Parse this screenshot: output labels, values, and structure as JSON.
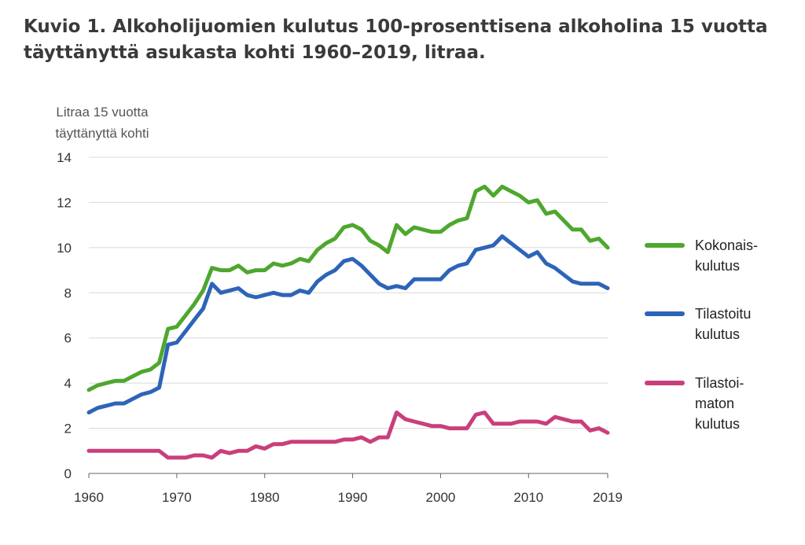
{
  "title_line1": "Kuvio 1. Alkoholijuomien kulutus 100-prosenttisena alkoholina 15 vuotta",
  "title_line2": "täyttänyttä asukasta kohti 1960–2019, litraa.",
  "chart_data": {
    "type": "line",
    "title": "Kuvio 1. Alkoholijuomien kulutus 100-prosenttisena alkoholina 15 vuotta täyttänyttä asukasta kohti 1960–2019, litraa.",
    "ylabel": [
      "Litraa 15 vuotta",
      "täyttänyttä  kohti"
    ],
    "xlabel": "",
    "xlim": [
      1960,
      2019
    ],
    "ylim": [
      0,
      14
    ],
    "x_ticks": [
      1960,
      1970,
      1980,
      1990,
      2000,
      2010,
      2019
    ],
    "y_ticks": [
      0,
      2,
      4,
      6,
      8,
      10,
      12,
      14
    ],
    "grid": true,
    "legend_position": "right",
    "x": [
      1960,
      1961,
      1962,
      1963,
      1964,
      1965,
      1966,
      1967,
      1968,
      1969,
      1970,
      1971,
      1972,
      1973,
      1974,
      1975,
      1976,
      1977,
      1978,
      1979,
      1980,
      1981,
      1982,
      1983,
      1984,
      1985,
      1986,
      1987,
      1988,
      1989,
      1990,
      1991,
      1992,
      1993,
      1994,
      1995,
      1996,
      1997,
      1998,
      1999,
      2000,
      2001,
      2002,
      2003,
      2004,
      2005,
      2006,
      2007,
      2008,
      2009,
      2010,
      2011,
      2012,
      2013,
      2014,
      2015,
      2016,
      2017,
      2018,
      2019
    ],
    "series": [
      {
        "name": [
          "Kokonais-",
          "kulutus"
        ],
        "color": "#4ea72e",
        "values": [
          3.7,
          3.9,
          4.0,
          4.1,
          4.1,
          4.3,
          4.5,
          4.6,
          4.9,
          6.4,
          6.5,
          7.0,
          7.5,
          8.1,
          9.1,
          9.0,
          9.0,
          9.2,
          8.9,
          9.0,
          9.0,
          9.3,
          9.2,
          9.3,
          9.5,
          9.4,
          9.9,
          10.2,
          10.4,
          10.9,
          11.0,
          10.8,
          10.3,
          10.1,
          9.8,
          11.0,
          10.6,
          10.9,
          10.8,
          10.7,
          10.7,
          11.0,
          11.2,
          11.3,
          12.5,
          12.7,
          12.3,
          12.7,
          12.5,
          12.3,
          12.0,
          12.1,
          11.5,
          11.6,
          11.2,
          10.8,
          10.8,
          10.3,
          10.4,
          10.0
        ]
      },
      {
        "name": [
          "Tilastoitu",
          "kulutus"
        ],
        "color": "#2e64b8",
        "values": [
          2.7,
          2.9,
          3.0,
          3.1,
          3.1,
          3.3,
          3.5,
          3.6,
          3.8,
          5.7,
          5.8,
          6.3,
          6.8,
          7.3,
          8.4,
          8.0,
          8.1,
          8.2,
          7.9,
          7.8,
          7.9,
          8.0,
          7.9,
          7.9,
          8.1,
          8.0,
          8.5,
          8.8,
          9.0,
          9.4,
          9.5,
          9.2,
          8.8,
          8.4,
          8.2,
          8.3,
          8.2,
          8.6,
          8.6,
          8.6,
          8.6,
          9.0,
          9.2,
          9.3,
          9.9,
          10.0,
          10.1,
          10.5,
          10.2,
          9.9,
          9.6,
          9.8,
          9.3,
          9.1,
          8.8,
          8.5,
          8.4,
          8.4,
          8.4,
          8.2
        ]
      },
      {
        "name": [
          "Tilastoi-",
          "maton",
          "kulutus"
        ],
        "color": "#c93f7b",
        "values": [
          1.0,
          1.0,
          1.0,
          1.0,
          1.0,
          1.0,
          1.0,
          1.0,
          1.0,
          0.7,
          0.7,
          0.7,
          0.8,
          0.8,
          0.7,
          1.0,
          0.9,
          1.0,
          1.0,
          1.2,
          1.1,
          1.3,
          1.3,
          1.4,
          1.4,
          1.4,
          1.4,
          1.4,
          1.4,
          1.5,
          1.5,
          1.6,
          1.4,
          1.6,
          1.6,
          2.7,
          2.4,
          2.3,
          2.2,
          2.1,
          2.1,
          2.0,
          2.0,
          2.0,
          2.6,
          2.7,
          2.2,
          2.2,
          2.2,
          2.3,
          2.3,
          2.3,
          2.2,
          2.5,
          2.4,
          2.3,
          2.3,
          1.9,
          2.0,
          1.8
        ]
      }
    ]
  }
}
